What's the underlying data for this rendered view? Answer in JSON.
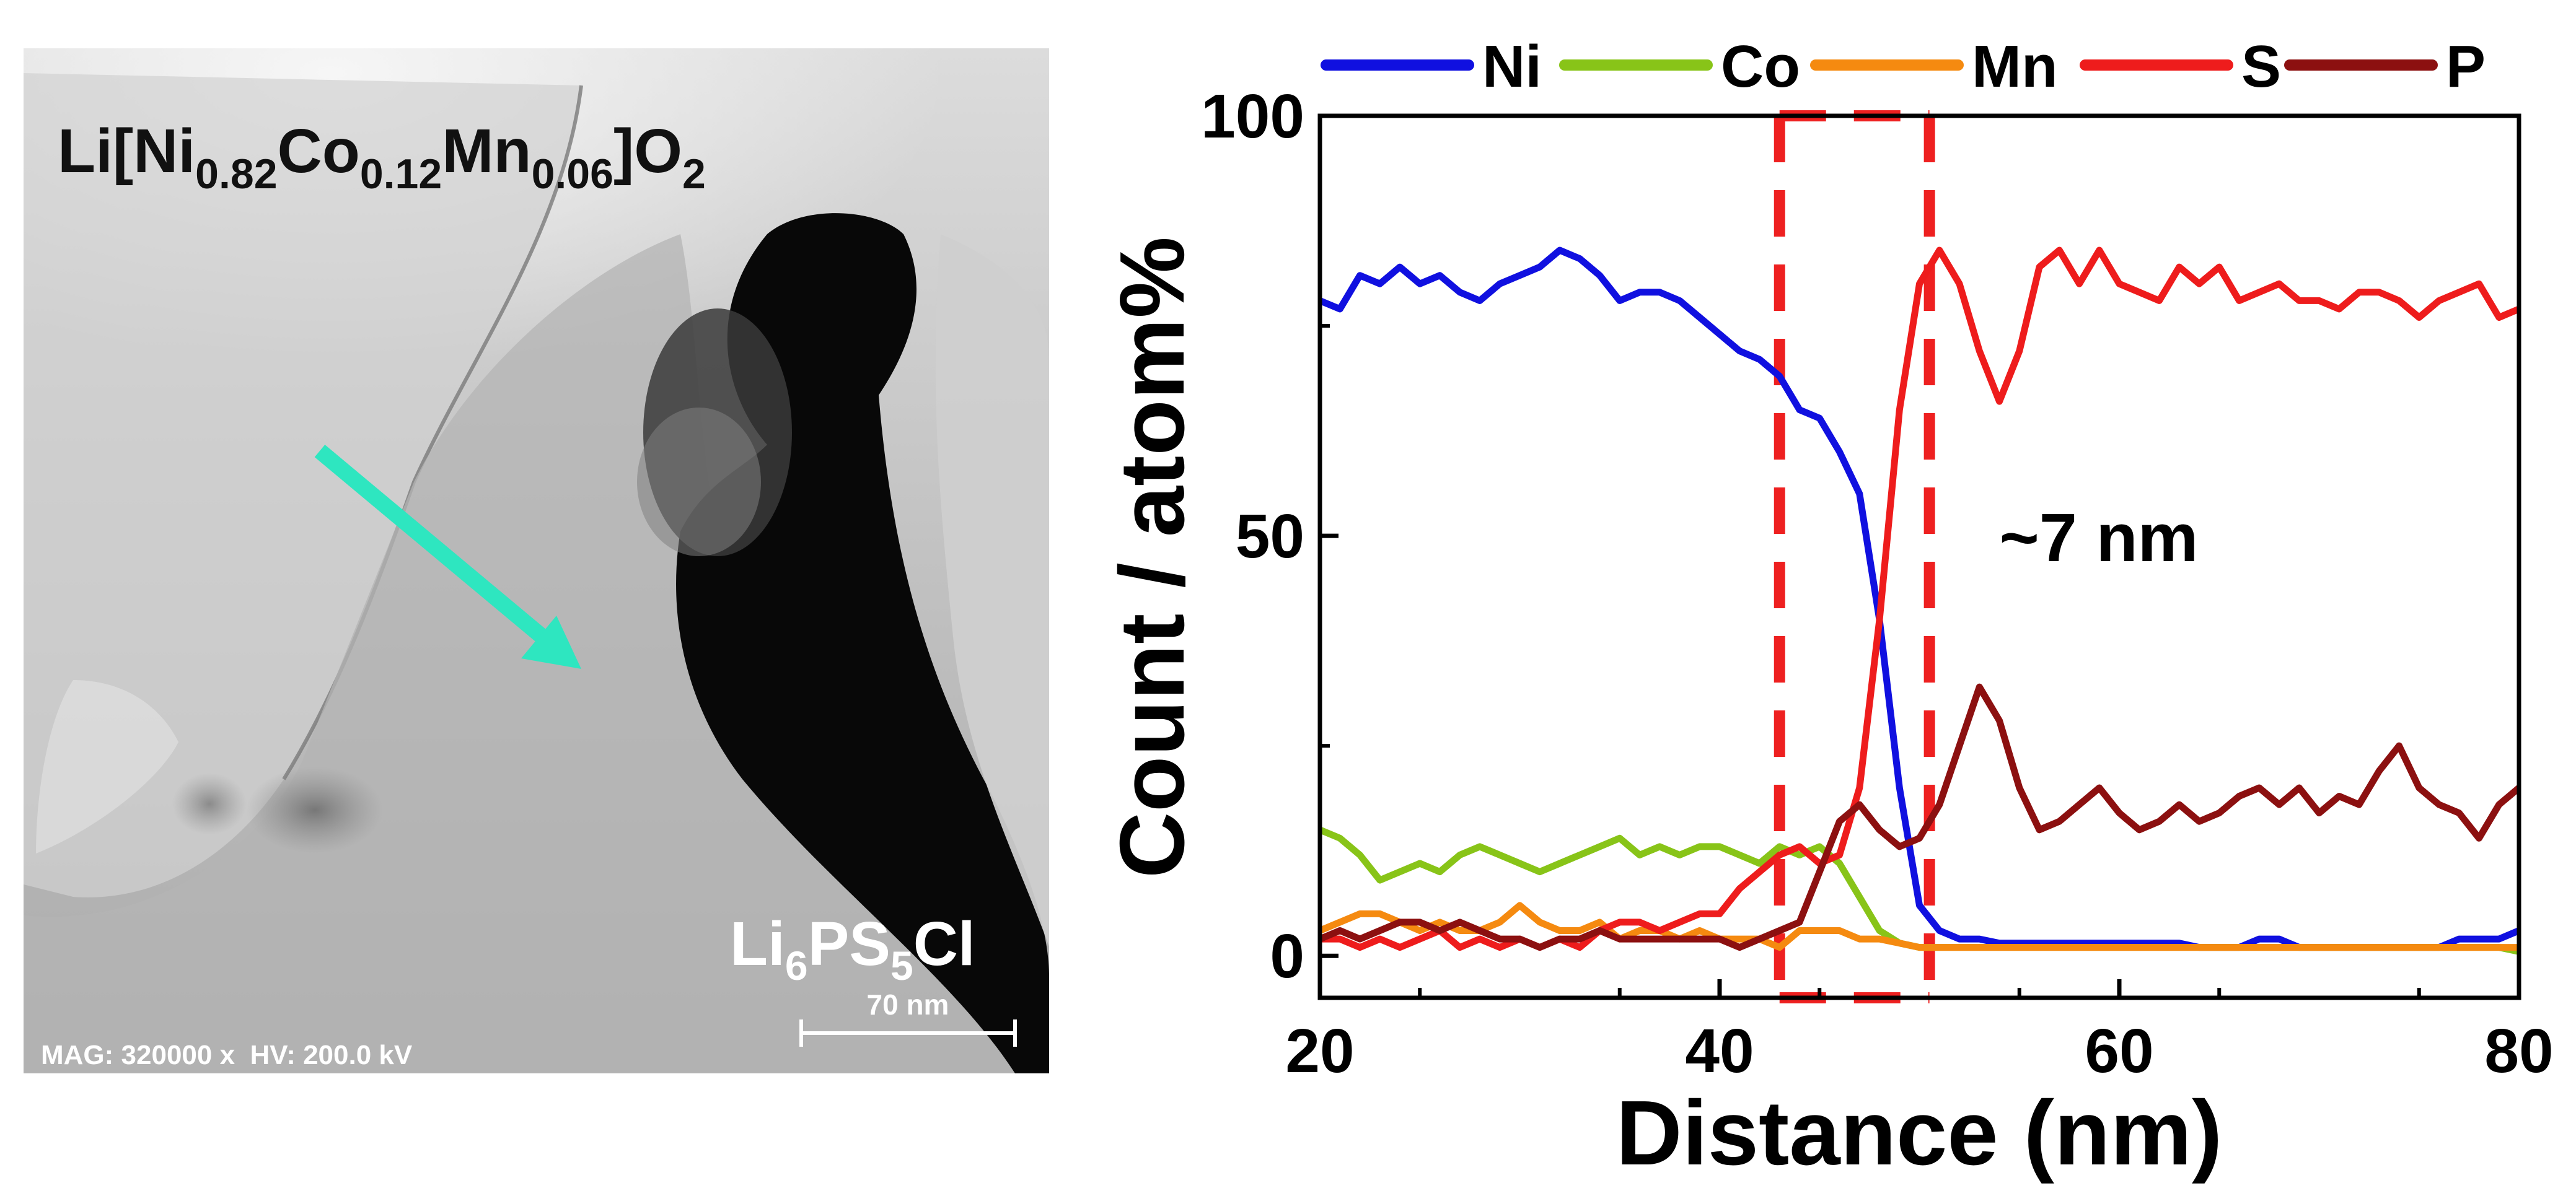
{
  "micrograph": {
    "cathode_label": {
      "base": "Li[Ni",
      "s1": "0.82",
      "m1": "Co",
      "s2": "0.12",
      "m2": "Mn",
      "s3": "0.06",
      "m3": "]O",
      "s4": "2"
    },
    "electrolyte_label": {
      "base": "Li",
      "s1": "6",
      "m1": "PS",
      "s2": "5",
      "m2": "Cl"
    },
    "scale_bar_label": "70 nm",
    "info_text": "MAG: 320000 x  HV: 200.0 kV",
    "arrow_color": "#2ee6c0"
  },
  "chart_data": {
    "type": "line",
    "xlabel": "Distance (nm)",
    "ylabel": "Count / atom%",
    "xlim": [
      20,
      80
    ],
    "ylim": [
      -5,
      100
    ],
    "xticks": [
      20,
      40,
      60,
      80
    ],
    "yticks": [
      0,
      50,
      100
    ],
    "grid": false,
    "legend_position": "top",
    "annotation": {
      "text": "~7 nm",
      "x": 54,
      "y": 47
    },
    "interface_region": {
      "x_start": 43,
      "x_end": 50.5,
      "color": "#ee2020"
    },
    "series": [
      {
        "name": "Ni",
        "color": "#1010e0",
        "x": [
          20,
          21,
          22,
          23,
          24,
          25,
          26,
          27,
          28,
          29,
          30,
          31,
          32,
          33,
          34,
          35,
          36,
          37,
          38,
          39,
          40,
          41,
          42,
          43,
          44,
          45,
          46,
          47,
          48,
          49,
          50,
          51,
          52,
          53,
          54,
          55,
          56,
          57,
          58,
          59,
          60,
          61,
          62,
          63,
          64,
          65,
          66,
          67,
          68,
          69,
          70,
          71,
          72,
          73,
          74,
          75,
          76,
          77,
          78,
          79,
          80
        ],
        "y": [
          78,
          77,
          81,
          80,
          82,
          80,
          81,
          79,
          78,
          80,
          81,
          82,
          84,
          83,
          81,
          78,
          79,
          79,
          78,
          76,
          74,
          72,
          71,
          69,
          65,
          64,
          60,
          55,
          40,
          20,
          6,
          3,
          2,
          2,
          1.5,
          1.5,
          1.5,
          1.5,
          1.5,
          1.5,
          1.5,
          1.5,
          1.5,
          1.5,
          1,
          1,
          1,
          2,
          2,
          1,
          1,
          1,
          1,
          1,
          1,
          1,
          1,
          2,
          2,
          2,
          3
        ]
      },
      {
        "name": "Co",
        "color": "#88c418",
        "x": [
          20,
          21,
          22,
          23,
          24,
          25,
          26,
          27,
          28,
          29,
          30,
          31,
          32,
          33,
          34,
          35,
          36,
          37,
          38,
          39,
          40,
          41,
          42,
          43,
          44,
          45,
          46,
          47,
          48,
          49,
          50,
          51,
          52,
          53,
          54,
          55,
          56,
          57,
          58,
          59,
          60,
          61,
          62,
          63,
          64,
          65,
          66,
          67,
          68,
          69,
          70,
          71,
          72,
          73,
          74,
          75,
          76,
          77,
          78,
          79,
          80
        ],
        "y": [
          15,
          14,
          12,
          9,
          10,
          11,
          10,
          12,
          13,
          12,
          11,
          10,
          11,
          12,
          13,
          14,
          12,
          13,
          12,
          13,
          13,
          12,
          11,
          13,
          12,
          13,
          11,
          7,
          3,
          1.5,
          1,
          1,
          1,
          1,
          1,
          1,
          1,
          1,
          1,
          1,
          1,
          1,
          1,
          1,
          1,
          1,
          1,
          1,
          1,
          1,
          1,
          1,
          1,
          1,
          1,
          1,
          1,
          1,
          1,
          1,
          0.5
        ]
      },
      {
        "name": "Mn",
        "color": "#f58a10",
        "x": [
          20,
          21,
          22,
          23,
          24,
          25,
          26,
          27,
          28,
          29,
          30,
          31,
          32,
          33,
          34,
          35,
          36,
          37,
          38,
          39,
          40,
          41,
          42,
          43,
          44,
          45,
          46,
          47,
          48,
          49,
          50,
          51,
          52,
          53,
          54,
          55,
          56,
          57,
          58,
          59,
          60,
          61,
          62,
          63,
          64,
          65,
          66,
          67,
          68,
          69,
          70,
          71,
          72,
          73,
          74,
          75,
          76,
          77,
          78,
          79,
          80
        ],
        "y": [
          3,
          4,
          5,
          5,
          4,
          3,
          4,
          3,
          3,
          4,
          6,
          4,
          3,
          3,
          4,
          2,
          3,
          3,
          2,
          3,
          2,
          2,
          2,
          1,
          3,
          3,
          3,
          2,
          2,
          1.5,
          1,
          1,
          1,
          1,
          1,
          1,
          1,
          1,
          1,
          1,
          1,
          1,
          1,
          1,
          1,
          1,
          1,
          1,
          1,
          1,
          1,
          1,
          1,
          1,
          1,
          1,
          1,
          1,
          1,
          1,
          1
        ]
      },
      {
        "name": "S",
        "color": "#ee1c1c",
        "x": [
          20,
          21,
          22,
          23,
          24,
          25,
          26,
          27,
          28,
          29,
          30,
          31,
          32,
          33,
          34,
          35,
          36,
          37,
          38,
          39,
          40,
          41,
          42,
          43,
          44,
          45,
          46,
          47,
          48,
          49,
          50,
          51,
          52,
          53,
          54,
          55,
          56,
          57,
          58,
          59,
          60,
          61,
          62,
          63,
          64,
          65,
          66,
          67,
          68,
          69,
          70,
          71,
          72,
          73,
          74,
          75,
          76,
          77,
          78,
          79,
          80
        ],
        "y": [
          2,
          2,
          1,
          2,
          1,
          2,
          3,
          1,
          2,
          1,
          2,
          1,
          2,
          1,
          3,
          4,
          4,
          3,
          4,
          5,
          5,
          8,
          10,
          12,
          13,
          11,
          12,
          20,
          40,
          65,
          80,
          84,
          80,
          72,
          66,
          72,
          82,
          84,
          80,
          84,
          80,
          79,
          78,
          82,
          80,
          82,
          78,
          79,
          80,
          78,
          78,
          77,
          79,
          79,
          78,
          76,
          78,
          79,
          80,
          76,
          77
        ]
      },
      {
        "name": "P",
        "color": "#8c1010",
        "x": [
          20,
          21,
          22,
          23,
          24,
          25,
          26,
          27,
          28,
          29,
          30,
          31,
          32,
          33,
          34,
          35,
          36,
          37,
          38,
          39,
          40,
          41,
          42,
          43,
          44,
          45,
          46,
          47,
          48,
          49,
          50,
          51,
          52,
          53,
          54,
          55,
          56,
          57,
          58,
          59,
          60,
          61,
          62,
          63,
          64,
          65,
          66,
          67,
          68,
          69,
          70,
          71,
          72,
          73,
          74,
          75,
          76,
          77,
          78,
          79,
          80
        ],
        "y": [
          2,
          3,
          2,
          3,
          4,
          4,
          3,
          4,
          3,
          2,
          2,
          1,
          2,
          2,
          3,
          2,
          2,
          2,
          2,
          2,
          2,
          1,
          2,
          3,
          4,
          10,
          16,
          18,
          15,
          13,
          14,
          18,
          25,
          32,
          28,
          20,
          15,
          16,
          18,
          20,
          17,
          15,
          16,
          18,
          16,
          17,
          19,
          20,
          18,
          20,
          17,
          19,
          18,
          22,
          25,
          20,
          18,
          17,
          14,
          18,
          20
        ]
      }
    ]
  }
}
